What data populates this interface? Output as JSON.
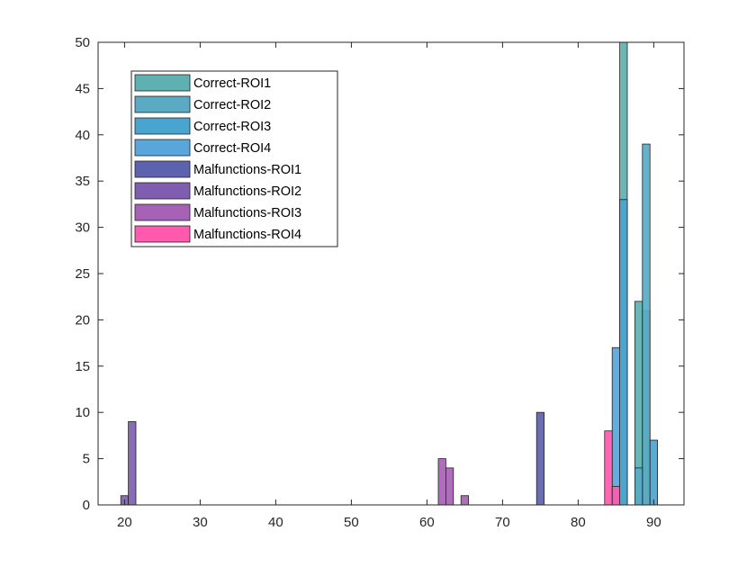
{
  "chart_data": {
    "type": "bar",
    "title": "",
    "xlabel": "",
    "ylabel": "",
    "xlim": [
      16.5,
      94
    ],
    "ylim": [
      0,
      50
    ],
    "xticks": [
      20,
      30,
      40,
      50,
      60,
      70,
      80,
      90
    ],
    "yticks": [
      0,
      5,
      10,
      15,
      20,
      25,
      30,
      35,
      40,
      45,
      50
    ],
    "grid": false,
    "legend_position": "top-left",
    "overlay": true,
    "series": [
      {
        "name": "Correct-ROI1",
        "color": "#5fb0b0",
        "bars": [
          {
            "x": 86,
            "y": 50
          },
          {
            "x": 88,
            "y": 22
          },
          {
            "x": 89,
            "y": 21
          }
        ]
      },
      {
        "name": "Correct-ROI2",
        "color": "#5aaac4",
        "bars": [
          {
            "x": 89,
            "y": 39
          },
          {
            "x": 88,
            "y": 4
          }
        ]
      },
      {
        "name": "Correct-ROI3",
        "color": "#4aa4d0",
        "bars": [
          {
            "x": 86,
            "y": 33
          },
          {
            "x": 90,
            "y": 7
          }
        ]
      },
      {
        "name": "Correct-ROI4",
        "color": "#58a6dc",
        "bars": [
          {
            "x": 85,
            "y": 17
          }
        ]
      },
      {
        "name": "Malfunctions-ROI1",
        "color": "#5c62ae",
        "bars": [
          {
            "x": 75,
            "y": 10
          }
        ]
      },
      {
        "name": "Malfunctions-ROI2",
        "color": "#7f5eb0",
        "bars": [
          {
            "x": 20,
            "y": 1
          },
          {
            "x": 21,
            "y": 9
          }
        ]
      },
      {
        "name": "Malfunctions-ROI3",
        "color": "#a662b4",
        "bars": [
          {
            "x": 62,
            "y": 5
          },
          {
            "x": 63,
            "y": 4
          },
          {
            "x": 65,
            "y": 1
          }
        ]
      },
      {
        "name": "Malfunctions-ROI4",
        "color": "#ff5aae",
        "bars": [
          {
            "x": 84,
            "y": 8
          },
          {
            "x": 85,
            "y": 2
          }
        ]
      }
    ]
  }
}
